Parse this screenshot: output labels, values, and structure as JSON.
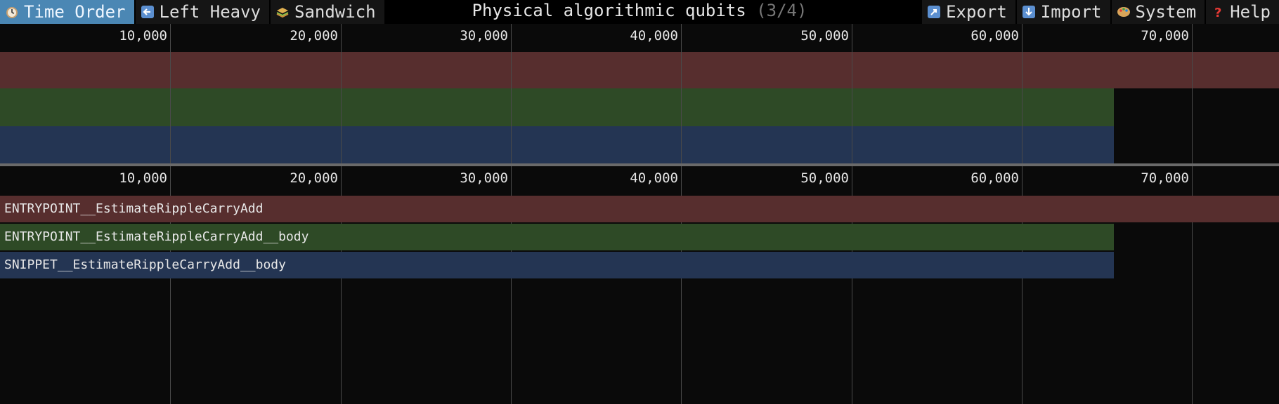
{
  "toolbar": {
    "left_tabs": [
      {
        "label": "Time Order",
        "icon": "clock-icon",
        "active": true
      },
      {
        "label": "Left Heavy",
        "icon": "arrow-left-icon",
        "active": false
      },
      {
        "label": "Sandwich",
        "icon": "sandwich-icon",
        "active": false
      }
    ],
    "title": "Physical algorithmic qubits",
    "title_counter": "(3/4)",
    "right_tabs": [
      {
        "label": "Export",
        "icon": "export-icon"
      },
      {
        "label": "Import",
        "icon": "import-icon"
      },
      {
        "label": "System",
        "icon": "palette-icon"
      },
      {
        "label": "Help",
        "icon": "question-icon"
      }
    ]
  },
  "ruler_ticks": [
    "10,000",
    "20,000",
    "30,000",
    "40,000",
    "50,000",
    "60,000",
    "70,000"
  ],
  "colors": {
    "frame_1": "#572e2e",
    "frame_2": "#2e4a26",
    "frame_3": "#243553",
    "accent": "#4b87b4"
  },
  "frames": [
    {
      "name": "ENTRYPOINT__EstimateRippleCarryAdd",
      "start": 0,
      "end": 75500
    },
    {
      "name": "ENTRYPOINT__EstimateRippleCarryAdd__body",
      "start": 0,
      "end": 65400
    },
    {
      "name": "SNIPPET__EstimateRippleCarryAdd__body",
      "start": 0,
      "end": 65400
    }
  ]
}
